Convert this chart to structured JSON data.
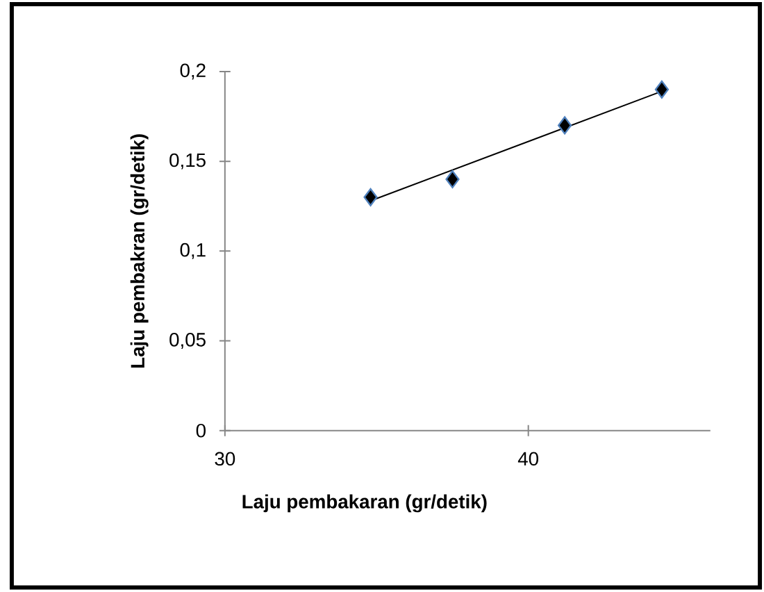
{
  "chart_data": {
    "type": "scatter",
    "xlabel": "Laju pembakaran (gr/detik)",
    "ylabel": "Laju pembakran (gr/detik)",
    "xlim": [
      30,
      46
    ],
    "xticks": [
      30,
      40
    ],
    "ylim": [
      0,
      0.2
    ],
    "yticks": [
      0,
      {
        "value": 0.05,
        "label": "0,05"
      },
      {
        "value": 0.1,
        "label": "0,1"
      },
      {
        "value": 0.15,
        "label": "0,15"
      },
      {
        "value": 0.2,
        "label": "0,2"
      }
    ],
    "marker": "diamond",
    "grid": false,
    "series": [
      {
        "type": "line",
        "color": "#000000",
        "x": [
          34.8,
          44.4
        ],
        "values": [
          0.128,
          0.189
        ],
        "marker": "none"
      },
      {
        "color": "#000000",
        "x": [
          34.8,
          37.5,
          41.2,
          44.4
        ],
        "values": [
          0.13,
          0.14,
          0.17,
          0.19
        ]
      }
    ]
  }
}
